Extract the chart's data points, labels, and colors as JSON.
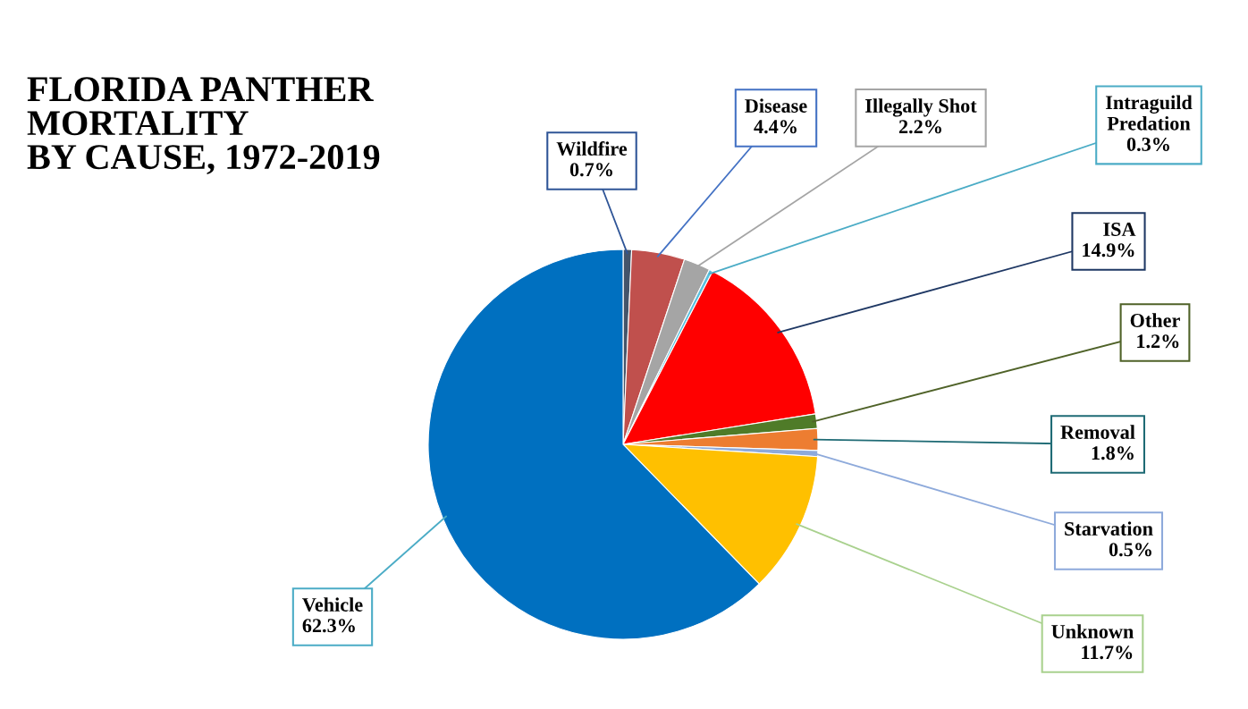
{
  "chart_data": {
    "type": "pie",
    "title": "FLORIDA PANTHER\nMORTALITY\nBY CAUSE, 1972-2019",
    "categories": [
      "Wildfire",
      "Disease",
      "Illegally Shot",
      "Intraguild\nPredation",
      "ISA",
      "Other",
      "Removal",
      "Starvation",
      "Unknown",
      "Vehicle"
    ],
    "values": [
      0.7,
      4.4,
      2.2,
      0.3,
      14.9,
      1.2,
      1.8,
      0.5,
      11.7,
      62.3
    ],
    "value_labels": [
      "0.7%",
      "4.4%",
      "2.2%",
      "0.3%",
      "14.9%",
      "1.2%",
      "1.8%",
      "0.5%",
      "11.7%",
      "62.3%"
    ],
    "colors": [
      "#44546a",
      "#c0504d",
      "#a5a5a5",
      "#5bc0de",
      "#ff0000",
      "#4f7b28",
      "#ed7d31",
      "#8eaadb",
      "#ffc000",
      "#0070c0"
    ],
    "legend": false
  }
}
